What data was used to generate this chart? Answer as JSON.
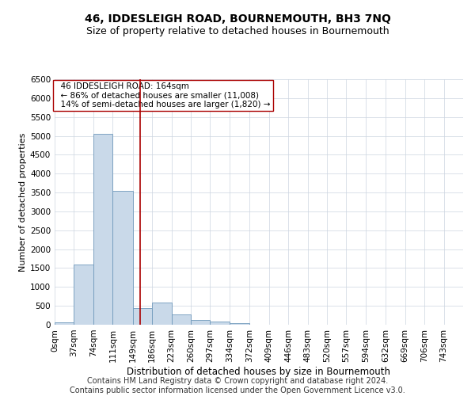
{
  "title": "46, IDDESLEIGH ROAD, BOURNEMOUTH, BH3 7NQ",
  "subtitle": "Size of property relative to detached houses in Bournemouth",
  "xlabel": "Distribution of detached houses by size in Bournemouth",
  "ylabel": "Number of detached properties",
  "footer_line1": "Contains HM Land Registry data © Crown copyright and database right 2024.",
  "footer_line2": "Contains public sector information licensed under the Open Government Licence v3.0.",
  "annotation_line1": "46 IDDESLEIGH ROAD: 164sqm",
  "annotation_line2": "← 86% of detached houses are smaller (11,008)",
  "annotation_line3": "14% of semi-detached houses are larger (1,820) →",
  "property_size": 164,
  "bar_color": "#c9d9e9",
  "bar_edge_color": "#7099bb",
  "vline_color": "#aa0000",
  "vline_x": 164,
  "categories": [
    "0sqm",
    "37sqm",
    "74sqm",
    "111sqm",
    "149sqm",
    "186sqm",
    "223sqm",
    "260sqm",
    "297sqm",
    "334sqm",
    "372sqm",
    "409sqm",
    "446sqm",
    "483sqm",
    "520sqm",
    "557sqm",
    "594sqm",
    "632sqm",
    "669sqm",
    "706sqm",
    "743sqm"
  ],
  "bin_edges": [
    0,
    37,
    74,
    111,
    149,
    186,
    223,
    260,
    297,
    334,
    372,
    409,
    446,
    483,
    520,
    557,
    594,
    632,
    669,
    706,
    743,
    780
  ],
  "bar_heights": [
    55,
    1600,
    5050,
    3550,
    430,
    580,
    270,
    120,
    80,
    50,
    10,
    5,
    2,
    1,
    0,
    0,
    0,
    0,
    0,
    0,
    0
  ],
  "ylim": [
    0,
    6500
  ],
  "yticks": [
    0,
    500,
    1000,
    1500,
    2000,
    2500,
    3000,
    3500,
    4000,
    4500,
    5000,
    5500,
    6000,
    6500
  ],
  "background_color": "#ffffff",
  "grid_color": "#ccd5e0",
  "title_fontsize": 10,
  "subtitle_fontsize": 9,
  "xlabel_fontsize": 8.5,
  "ylabel_fontsize": 8,
  "tick_fontsize": 7.5,
  "annotation_fontsize": 7.5,
  "footer_fontsize": 7
}
